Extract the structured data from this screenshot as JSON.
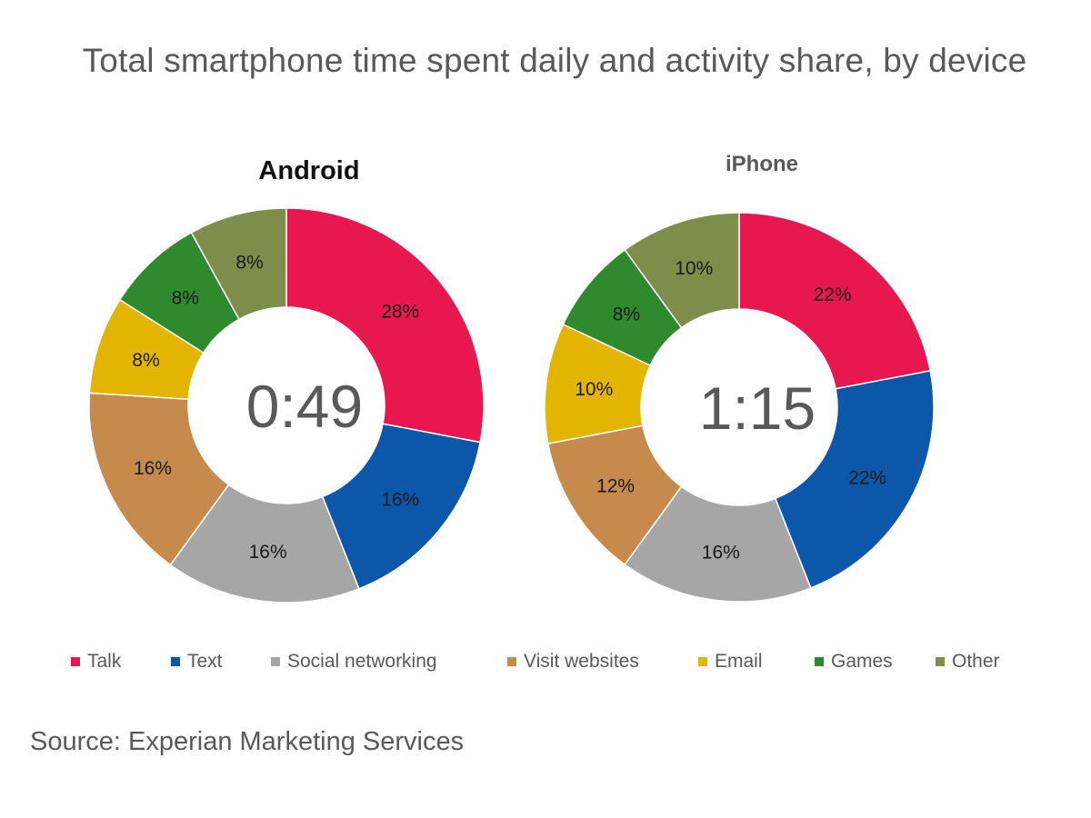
{
  "title": "Total smartphone time spent daily and activity share, by device",
  "source": "Source: Experian Marketing Services",
  "legend": [
    {
      "label": "Talk",
      "color": "#E8174F"
    },
    {
      "label": "Text",
      "color": "#0D57AA"
    },
    {
      "label": "Social networking",
      "color": "#A6A6A6"
    },
    {
      "label": "Visit websites",
      "color": "#C68A4C"
    },
    {
      "label": "Email",
      "color": "#E3B400"
    },
    {
      "label": "Games",
      "color": "#2F8A2E"
    },
    {
      "label": "Other",
      "color": "#7F8D4A"
    }
  ],
  "chart_data": [
    {
      "type": "pie",
      "subtype": "donut",
      "title": "Android",
      "center_label": "0:49",
      "categories": [
        "Talk",
        "Text",
        "Social networking",
        "Visit websites",
        "Email",
        "Games",
        "Other"
      ],
      "values": [
        28,
        16,
        16,
        16,
        8,
        8,
        8
      ],
      "labels": [
        "28%",
        "16%",
        "16%",
        "16%",
        "8%",
        "8%",
        "8%"
      ]
    },
    {
      "type": "pie",
      "subtype": "donut",
      "title": "iPhone",
      "center_label": "1:15",
      "categories": [
        "Talk",
        "Text",
        "Social networking",
        "Visit websites",
        "Email",
        "Games",
        "Other"
      ],
      "values": [
        22,
        22,
        16,
        12,
        10,
        8,
        10
      ],
      "labels": [
        "22%",
        "22%",
        "16%",
        "12%",
        "10%",
        "8%",
        "10%"
      ]
    }
  ]
}
